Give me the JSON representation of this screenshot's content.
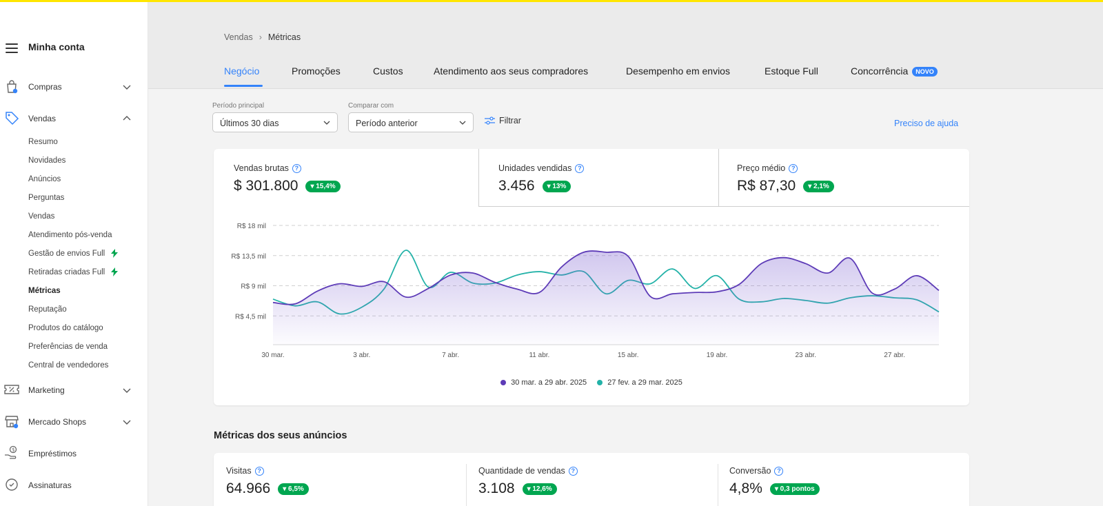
{
  "sidebar": {
    "title": "Minha conta",
    "sections": [
      {
        "label": "Compras",
        "icon": "shopping-bag-icon"
      },
      {
        "label": "Vendas",
        "icon": "tag-icon"
      },
      {
        "label": "Marketing",
        "icon": "coupon-icon"
      },
      {
        "label": "Mercado Shops",
        "icon": "store-icon"
      },
      {
        "label": "Empréstimos",
        "icon": "money-hand-icon"
      },
      {
        "label": "Assinaturas",
        "icon": "subscription-icon"
      }
    ],
    "vendas_items": [
      "Resumo",
      "Novidades",
      "Anúncios",
      "Perguntas",
      "Vendas",
      "Atendimento pós-venda",
      "Gestão de envios Full",
      "Retiradas criadas Full",
      "Métricas",
      "Reputação",
      "Produtos do catálogo",
      "Preferências de venda",
      "Central de vendedores"
    ],
    "active_item": "Métricas"
  },
  "breadcrumb": {
    "parent": "Vendas",
    "current": "Métricas"
  },
  "tabs": [
    {
      "label": "Negócio"
    },
    {
      "label": "Promoções"
    },
    {
      "label": "Custos"
    },
    {
      "label": "Atendimento aos seus compradores"
    },
    {
      "label": "Desempenho em envios"
    },
    {
      "label": "Estoque Full"
    },
    {
      "label": "Concorrência",
      "badge": "NOVO"
    }
  ],
  "filters": {
    "periodo_label": "Período principal",
    "periodo_value": "Últimos 30 dias",
    "comparar_label": "Comparar com",
    "comparar_value": "Período anterior",
    "filtrar": "Filtrar",
    "help": "Preciso de ajuda"
  },
  "kpis": [
    {
      "title": "Vendas brutas",
      "value": "$ 301.800",
      "delta": "▾ 15,4%"
    },
    {
      "title": "Unidades vendidas",
      "value": "3.456",
      "delta": "▾ 13%"
    },
    {
      "title": "Preço médio",
      "value": "R$ 87,30",
      "delta": "▾ 2,1%"
    }
  ],
  "chart_data": {
    "type": "line",
    "title": "",
    "xlabel": "",
    "ylabel": "",
    "y_tick_labels": [
      "R$ 4,5 mil",
      "R$ 9 mil",
      "R$ 13,5 mil",
      "R$ 18 mil"
    ],
    "y_ticks": [
      4.5,
      9,
      13.5,
      18
    ],
    "ylim": [
      0,
      18
    ],
    "grid": "horizontal-dashed",
    "x_tick_labels": [
      "30 mar.",
      "3 abr.",
      "7 abr.",
      "11 abr.",
      "15 abr.",
      "19 abr.",
      "23 abr.",
      "27 abr."
    ],
    "x_tick_days": [
      0,
      4,
      8,
      12,
      16,
      20,
      24,
      28
    ],
    "legend_position": "bottom-center",
    "series": [
      {
        "name": "30 mar. a 29 abr. 2025",
        "color": "#5d3bb7",
        "area": true,
        "x": [
          0,
          1,
          2,
          3,
          4,
          5,
          6,
          7,
          8,
          9,
          10,
          11,
          12,
          13,
          14,
          15,
          16,
          17,
          18,
          19,
          20,
          21,
          22,
          23,
          24,
          25,
          26,
          27,
          28,
          29,
          30
        ],
        "values": [
          6.5,
          6.3,
          8.2,
          9.3,
          8.9,
          9.6,
          7.3,
          8.6,
          10.6,
          10.9,
          9.5,
          8.5,
          8.0,
          11.8,
          14.0,
          14.0,
          13.4,
          7.4,
          7.8,
          8.0,
          8.1,
          9.2,
          12.3,
          13.2,
          12.3,
          10.9,
          13.1,
          7.9,
          8.5,
          10.5,
          8.3
        ]
      },
      {
        "name": "27 fev. a 29 mar. 2025",
        "color": "#23b2a8",
        "area": false,
        "x": [
          0,
          1,
          2,
          3,
          4,
          5,
          6,
          7,
          8,
          9,
          10,
          11,
          12,
          13,
          14,
          15,
          16,
          17,
          18,
          19,
          20,
          21,
          22,
          23,
          24,
          25,
          26,
          27,
          28,
          29,
          30
        ],
        "values": [
          7.0,
          6.0,
          6.6,
          4.8,
          5.8,
          8.5,
          14.3,
          8.8,
          11.0,
          9.4,
          9.4,
          10.6,
          11.1,
          10.6,
          11.1,
          7.8,
          9.8,
          9.3,
          11.5,
          8.6,
          10.5,
          7.0,
          6.6,
          7.1,
          6.8,
          6.4,
          7.2,
          7.5,
          7.2,
          6.9,
          5.1
        ]
      }
    ]
  },
  "section_title": "Métricas dos seus anúncios",
  "metrics": [
    {
      "title": "Visitas",
      "value": "64.966",
      "delta": "▾ 6,5%"
    },
    {
      "title": "Quantidade de vendas",
      "value": "3.108",
      "delta": "▾ 12,6%"
    },
    {
      "title": "Conversão",
      "value": "4,8%",
      "delta": "▾ 0,3 pontos"
    }
  ]
}
